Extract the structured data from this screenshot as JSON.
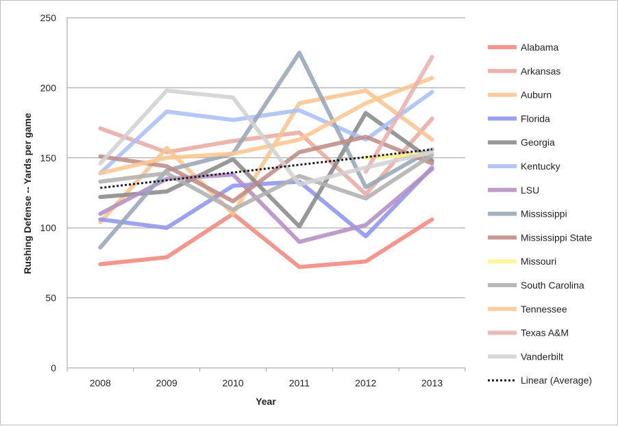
{
  "chart_data": {
    "type": "line",
    "xlabel": "Year",
    "ylabel": "Rushing Defense -- Yards per game",
    "x": [
      "2008",
      "2009",
      "2010",
      "2011",
      "2012",
      "2013"
    ],
    "ylim": [
      0,
      250
    ],
    "yticks": [
      0,
      50,
      100,
      150,
      200,
      250
    ],
    "grid": true,
    "legend": "right",
    "series": [
      {
        "name": "Alabama",
        "color": "#f4877c",
        "values": [
          74,
          79,
          110,
          72,
          76,
          106
        ]
      },
      {
        "name": "Arkansas",
        "color": "#e8aaa2",
        "values": [
          171,
          154,
          162,
          168,
          124,
          178
        ]
      },
      {
        "name": "Auburn",
        "color": "#f9c490",
        "values": [
          104,
          157,
          110,
          189,
          198,
          163
        ]
      },
      {
        "name": "Florida",
        "color": "#8e95f0",
        "values": [
          106,
          100,
          130,
          133,
          94,
          143
        ]
      },
      {
        "name": "Georgia",
        "color": "#8a8a8a",
        "values": [
          122,
          126,
          149,
          101,
          182,
          148
        ]
      },
      {
        "name": "Kentucky",
        "color": "#a9bff7",
        "values": [
          139,
          183,
          177,
          184,
          163,
          197
        ]
      },
      {
        "name": "LSU",
        "color": "#b48ec4",
        "values": [
          110,
          135,
          138,
          90,
          102,
          142
        ]
      },
      {
        "name": "Mississippi",
        "color": "#96a6b8",
        "values": [
          86,
          141,
          153,
          225,
          129,
          156
        ]
      },
      {
        "name": "Mississippi State",
        "color": "#c08c85",
        "values": [
          151,
          144,
          119,
          154,
          165,
          146
        ]
      },
      {
        "name": "Missouri",
        "color": "#fcf58a",
        "values": [
          null,
          null,
          null,
          null,
          150,
          153
        ]
      },
      {
        "name": "South Carolina",
        "color": "#b0b0b0",
        "values": [
          133,
          139,
          113,
          137,
          121,
          152
        ]
      },
      {
        "name": "Tennessee",
        "color": "#fcc791",
        "values": [
          139,
          150,
          153,
          163,
          189,
          207
        ]
      },
      {
        "name": "Texas A&M",
        "color": "#ebb0ae",
        "values": [
          null,
          null,
          null,
          null,
          140,
          222
        ]
      },
      {
        "name": "Vanderbilt",
        "color": "#d2d2d2",
        "values": [
          146,
          198,
          193,
          131,
          143,
          154
        ]
      },
      {
        "name": "Linear (Average)",
        "color": "#1a1a1a",
        "dashed": true,
        "values": [
          128.5,
          134,
          139.5,
          145,
          150.5,
          156
        ]
      }
    ]
  }
}
